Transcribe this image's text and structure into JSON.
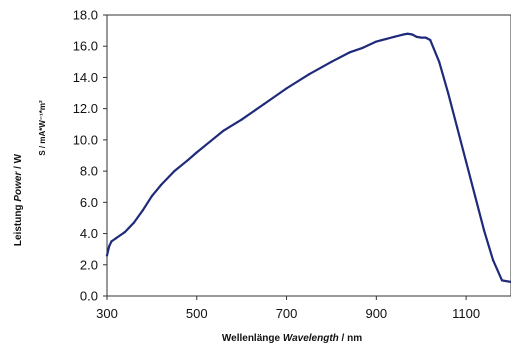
{
  "chart_data": {
    "type": "line",
    "title": "",
    "xlabel": {
      "prefix": "Wellenlänge ",
      "italic": "Wavelength",
      "suffix": " / nm"
    },
    "ylabel": {
      "prefix": "Leistung ",
      "italic": "Power",
      "suffix": " / W"
    },
    "ylabel_secondary": "S / mA*W⁻¹*m²",
    "xlim": [
      300,
      1200
    ],
    "ylim": [
      0,
      18
    ],
    "x_ticks": [
      "300",
      "500",
      "700",
      "900",
      "1100"
    ],
    "x_tick_values": [
      300,
      500,
      700,
      900,
      1100
    ],
    "y_ticks": [
      "0.0",
      "2.0",
      "4.0",
      "6.0",
      "8.0",
      "10.0",
      "12.0",
      "14.0",
      "16.0",
      "18.0"
    ],
    "y_tick_values": [
      0,
      2,
      4,
      6,
      8,
      10,
      12,
      14,
      16,
      18
    ],
    "grid": false,
    "legend": "none",
    "series": [
      {
        "color": "#1f2a7a",
        "x": [
          300,
          305,
          310,
          320,
          340,
          360,
          380,
          400,
          420,
          450,
          480,
          500,
          530,
          560,
          600,
          650,
          700,
          750,
          800,
          840,
          870,
          900,
          920,
          940,
          960,
          970,
          980,
          990,
          1000,
          1010,
          1020,
          1040,
          1060,
          1080,
          1100,
          1120,
          1140,
          1160,
          1180,
          1200
        ],
        "y": [
          2.6,
          3.2,
          3.5,
          3.7,
          4.1,
          4.7,
          5.5,
          6.4,
          7.1,
          8.0,
          8.7,
          9.2,
          9.9,
          10.6,
          11.3,
          12.3,
          13.3,
          14.2,
          15.0,
          15.6,
          15.9,
          16.3,
          16.45,
          16.6,
          16.75,
          16.8,
          16.75,
          16.6,
          16.55,
          16.55,
          16.4,
          15.0,
          13.0,
          10.8,
          8.6,
          6.4,
          4.2,
          2.3,
          1.0,
          0.9
        ]
      }
    ]
  }
}
